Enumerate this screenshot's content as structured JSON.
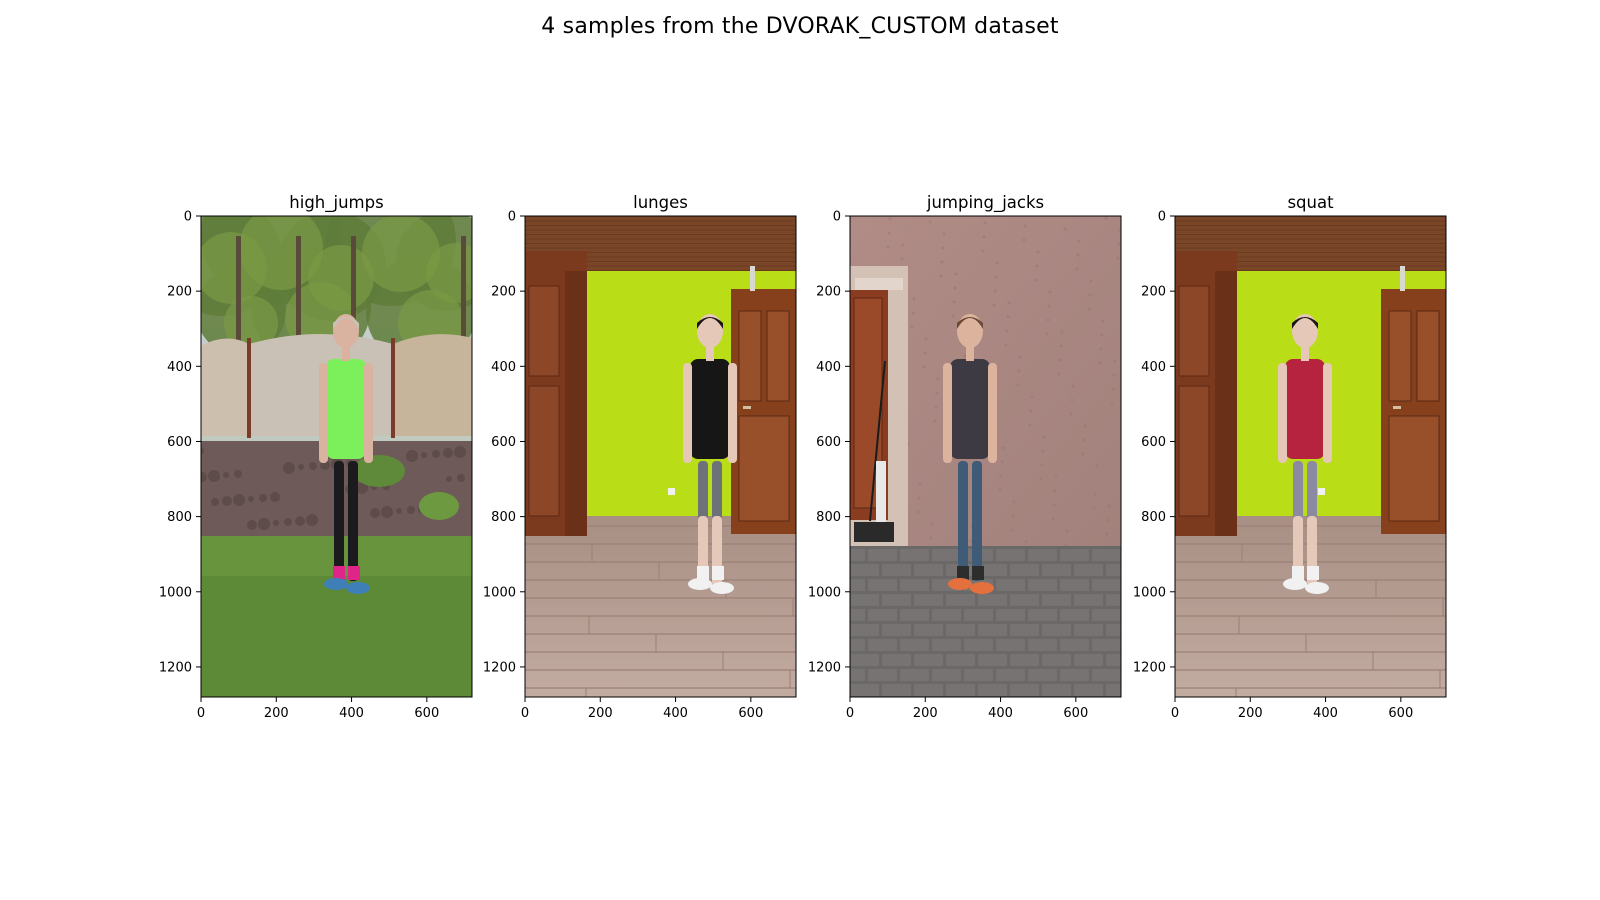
{
  "figure": {
    "suptitle": "4 samples from the DVORAK_CUSTOM dataset"
  },
  "panels": [
    {
      "title": "high_jumps",
      "scene": "outdoor",
      "person_colors": {
        "skin": "#d9b3a0",
        "hair": "#c9c2b8",
        "top": "#7cf05a",
        "bottom": "#1b1b1d",
        "shoes": "#3f7fb8",
        "socks": "#e0258a"
      }
    },
    {
      "title": "lunges",
      "scene": "indoor",
      "person_colors": {
        "skin": "#e6c8b8",
        "hair": "#1d1414",
        "top": "#161616",
        "bottom": "#6d7278",
        "shoes": "#f1f1f1",
        "socks": "#f1f1f1"
      }
    },
    {
      "title": "jumping_jacks",
      "scene": "wall",
      "person_colors": {
        "skin": "#dcb39c",
        "hair": "#6a4a36",
        "top": "#3d3a44",
        "bottom": "#3f5b78",
        "shoes": "#e4713d",
        "socks": "#2d2d2d"
      }
    },
    {
      "title": "squat",
      "scene": "indoor",
      "person_colors": {
        "skin": "#e6c8b8",
        "hair": "#1d1414",
        "top": "#b5233f",
        "bottom": "#8c8aa0",
        "shoes": "#f1f1f1",
        "socks": "#f1f1f1"
      }
    }
  ],
  "axes": {
    "x_ticks": [
      "0",
      "200",
      "400",
      "600"
    ],
    "y_ticks": [
      "0",
      "200",
      "400",
      "600",
      "800",
      "1000",
      "1200"
    ]
  }
}
